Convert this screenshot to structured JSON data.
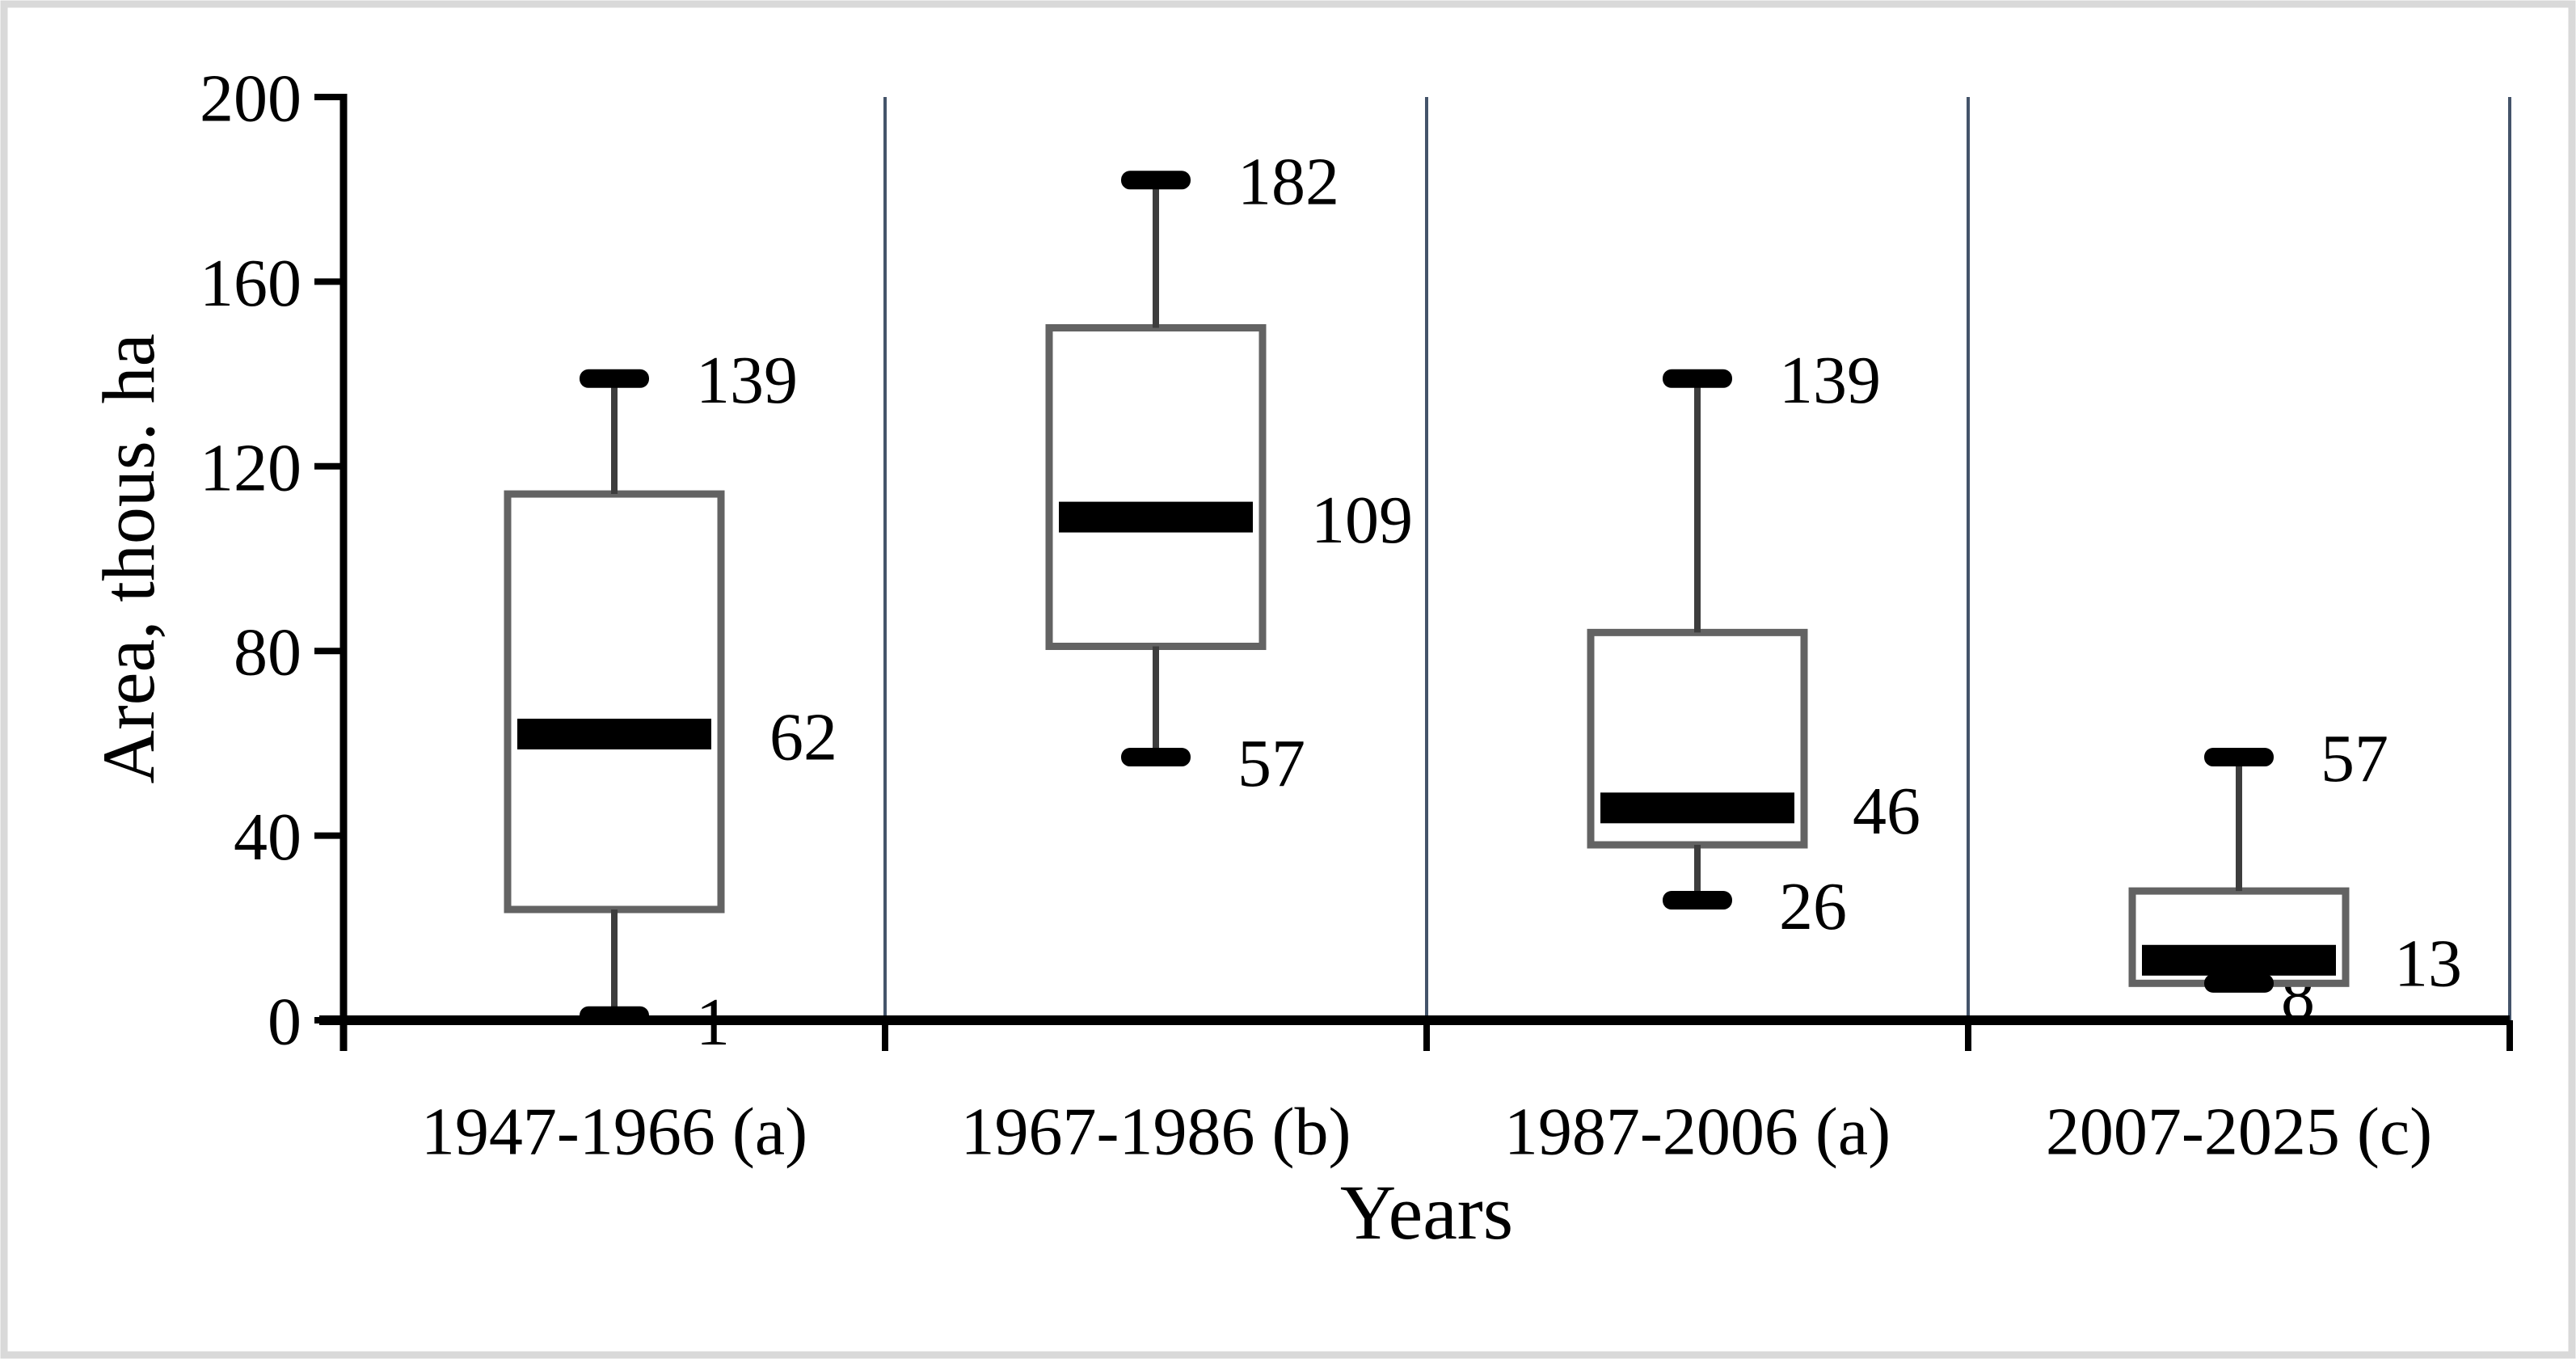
{
  "figure": {
    "background": "#ffffff",
    "frame_color": "#d9d9d9"
  },
  "chart_data": {
    "type": "box",
    "title": "",
    "xlabel": "Years",
    "ylabel": "Area, thous. ha",
    "ylim": [
      0,
      200
    ],
    "ytick_values": [
      0,
      40,
      80,
      120,
      160,
      200
    ],
    "ytick_labels": [
      "0",
      "40",
      "80",
      "120",
      "160",
      "200"
    ],
    "categories": [
      "1947-1966 (a)",
      "1967-1986 (b)",
      "1987-2006 (a)",
      "2007-2025 (c)"
    ],
    "series": [
      {
        "name": "1947-1966 (a)",
        "min": 1,
        "q1": 24,
        "median": 62,
        "q3": 114,
        "max": 139,
        "point_labels": {
          "max": "139",
          "median": "62",
          "min": "1"
        }
      },
      {
        "name": "1967-1986 (b)",
        "min": 57,
        "q1": 81,
        "median": 109,
        "q3": 150,
        "max": 182,
        "point_labels": {
          "max": "182",
          "median": "109",
          "min": "57"
        }
      },
      {
        "name": "1987-2006 (a)",
        "min": 26,
        "q1": 38,
        "median": 46,
        "q3": 84,
        "max": 139,
        "point_labels": {
          "max": "139",
          "median": "46",
          "min": "26"
        }
      },
      {
        "name": "2007-2025 (c)",
        "min": 8,
        "q1": 8,
        "median": 13,
        "q3": 28,
        "max": 57,
        "point_labels": {
          "max": "57",
          "median": "13",
          "min": "8"
        }
      }
    ],
    "legend_position": "none",
    "grid": "vertical-category-separators",
    "colors": {
      "box_stroke": "#636363",
      "box_fill": "#ffffff",
      "whisker": "#3d3d3d",
      "cap_fill": "#000000",
      "median_fill": "#000000",
      "separator": "#44546a",
      "axis": "#000000",
      "text": "#000000"
    }
  }
}
